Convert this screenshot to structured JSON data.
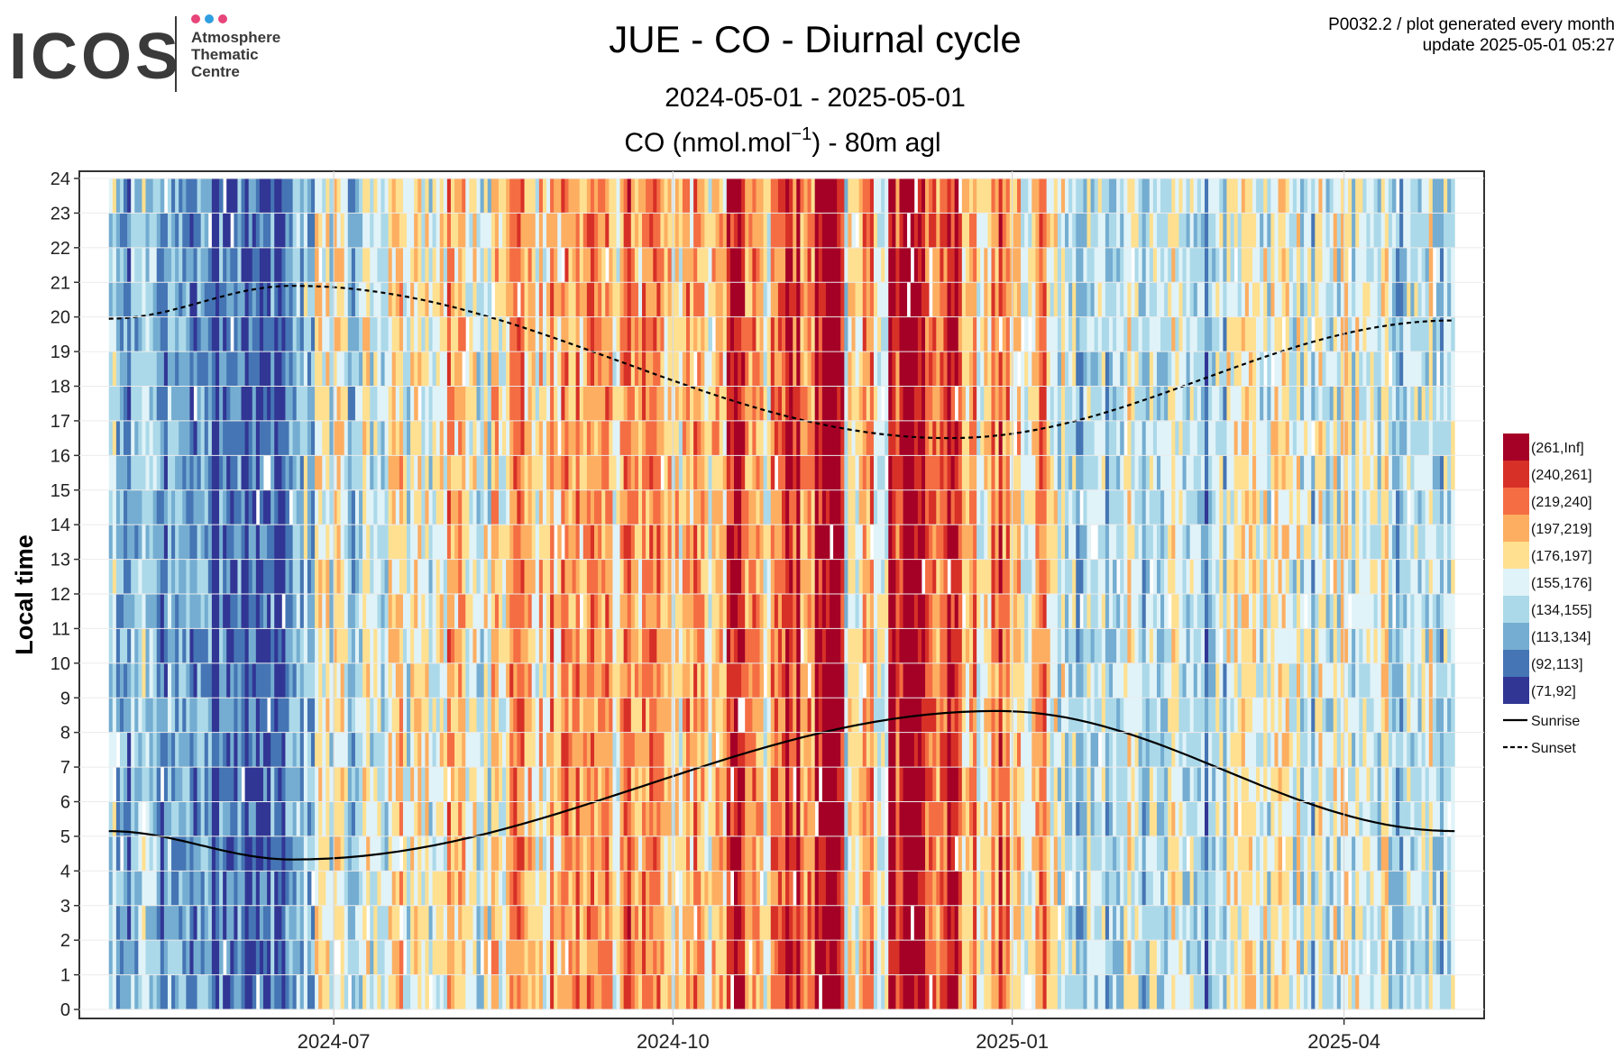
{
  "logo": {
    "text": "ICOS",
    "subtitle_lines": [
      "Atmosphere",
      "Thematic",
      "Centre"
    ],
    "dot_colors": [
      "#e8457a",
      "#2f9fe0",
      "#e8457a"
    ],
    "text_color": "#3a3a3a"
  },
  "header": {
    "title": "JUE - CO - Diurnal cycle",
    "date_range": "2024-05-01 - 2025-05-01",
    "variable_label_prefix": "CO (nmol.mol",
    "variable_label_sup": "−1",
    "variable_label_suffix": ") - 80m agl",
    "meta_line1": "P0032.2 / plot generated every month",
    "meta_line2": "update  2025-05-01 05:27"
  },
  "chart_data": {
    "type": "heatmap",
    "ylabel": "Local time",
    "xlabel": "",
    "x_range": [
      "2024-05-01",
      "2025-05-01"
    ],
    "ylim": [
      0,
      24
    ],
    "y_ticks": [
      0,
      1,
      2,
      3,
      4,
      5,
      6,
      7,
      8,
      9,
      10,
      11,
      12,
      13,
      14,
      15,
      16,
      17,
      18,
      19,
      20,
      21,
      22,
      23,
      24
    ],
    "x_ticks": [
      {
        "date": "2024-07-01",
        "label": "2024-07"
      },
      {
        "date": "2024-10-01",
        "label": "2024-10"
      },
      {
        "date": "2025-01-01",
        "label": "2025-01"
      },
      {
        "date": "2025-04-01",
        "label": "2025-04"
      }
    ],
    "grid": true,
    "legend_position": "right",
    "color_classes": [
      {
        "label": "(261,Inf]",
        "color": "#a50026"
      },
      {
        "label": "(240,261]",
        "color": "#d73027"
      },
      {
        "label": "(219,240]",
        "color": "#f46d43"
      },
      {
        "label": "(197,219]",
        "color": "#fdae61"
      },
      {
        "label": "(176,197]",
        "color": "#fee090"
      },
      {
        "label": "(155,176]",
        "color": "#e0f3f8"
      },
      {
        "label": "(134,155]",
        "color": "#abd9e9"
      },
      {
        "label": "(113,134]",
        "color": "#74add1"
      },
      {
        "label": "(92,113]",
        "color": "#4575b4"
      },
      {
        "label": "(71,92]",
        "color": "#313695"
      }
    ],
    "lines": [
      {
        "name": "Sunrise",
        "style": "solid",
        "color": "#000000"
      },
      {
        "name": "Sunset",
        "style": "dashed",
        "color": "#000000"
      }
    ],
    "sunrise_hours": [
      {
        "date": "2024-05-01",
        "hour": 5.15
      },
      {
        "date": "2024-06-20",
        "hour": 4.33
      },
      {
        "date": "2024-12-28",
        "hour": 8.62
      },
      {
        "date": "2025-05-01",
        "hour": 5.15
      }
    ],
    "sunset_hours": [
      {
        "date": "2024-05-01",
        "hour": 19.95
      },
      {
        "date": "2024-06-20",
        "hour": 20.9
      },
      {
        "date": "2024-12-15",
        "hour": 16.5
      },
      {
        "date": "2025-05-01",
        "hour": 19.9
      }
    ],
    "daily_mean_class_by_week": [
      6,
      7,
      6,
      7,
      7,
      7,
      8,
      8,
      8,
      9,
      8,
      8,
      7,
      6,
      4,
      5,
      6,
      5,
      5,
      4,
      5,
      5,
      4,
      3,
      4,
      5,
      4,
      3,
      3,
      4,
      3,
      2,
      3,
      3,
      4,
      2,
      3,
      3,
      4,
      3,
      4,
      3,
      1,
      2,
      4,
      3,
      1,
      2,
      0,
      0,
      5,
      3,
      4,
      1,
      0,
      1,
      2,
      1,
      3,
      4,
      2,
      3,
      4,
      3,
      5,
      6,
      6,
      6,
      6,
      5,
      6,
      6,
      5,
      6,
      7,
      6,
      5,
      4,
      5,
      5,
      5,
      6,
      5,
      5,
      5,
      4,
      5,
      6,
      5,
      5,
      6,
      6,
      5
    ]
  }
}
